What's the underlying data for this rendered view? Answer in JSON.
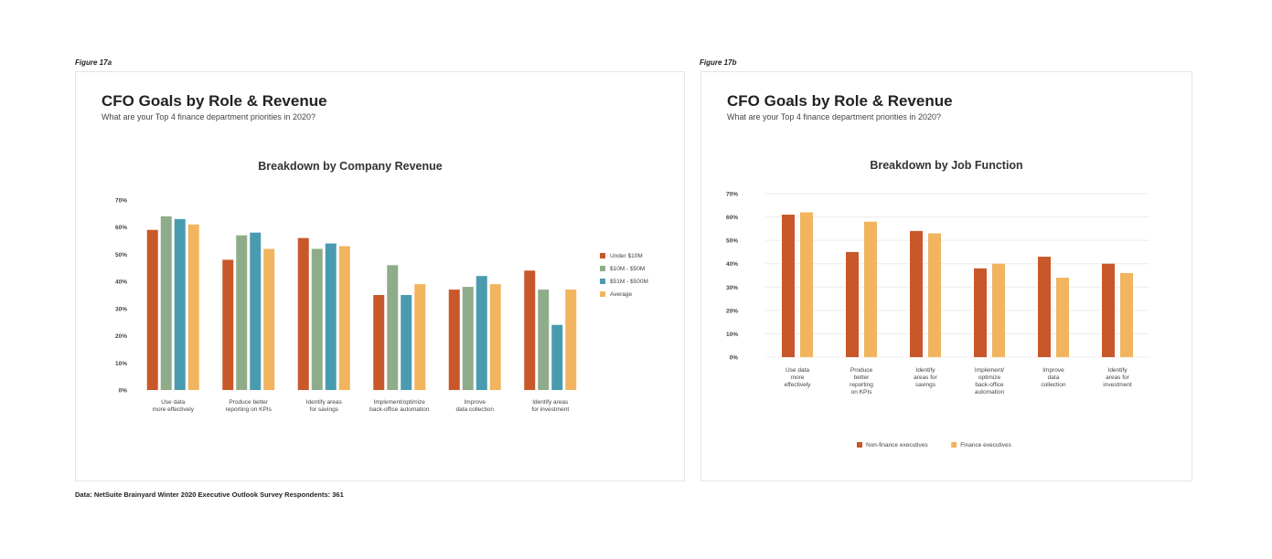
{
  "source_note": "Data: NetSuite Brainyard Winter 2020 Executive Outlook Survey   Respondents: 361",
  "panels": [
    {
      "figure_label": "Figure 17a",
      "title": "CFO Goals by Role & Revenue",
      "subtitle": "What are your Top 4 finance department priorities in 2020?"
    },
    {
      "figure_label": "Figure 17b",
      "title": "CFO Goals by Role & Revenue",
      "subtitle": "What are your Top 4 finance department priorities in 2020?"
    }
  ],
  "chart_data": [
    {
      "type": "bar",
      "title": "Breakdown by Company Revenue",
      "categories": [
        [
          "Use data",
          "more effectively"
        ],
        [
          "Produce better",
          "reporting on KPIs"
        ],
        [
          "Identify areas",
          "for savings"
        ],
        [
          "Implement/optimize",
          "back-office automation"
        ],
        [
          "Improve",
          "data collection"
        ],
        [
          "Identify areas",
          "for investment"
        ]
      ],
      "series": [
        {
          "name": "Under $10M",
          "color": "#c8582a",
          "values": [
            59,
            48,
            56,
            35,
            37,
            44
          ]
        },
        {
          "name": "$10M - $50M",
          "color": "#8fac8a",
          "values": [
            64,
            57,
            52,
            46,
            38,
            37
          ]
        },
        {
          "name": "$51M - $500M",
          "color": "#4a9bb0",
          "values": [
            63,
            58,
            54,
            35,
            42,
            24
          ]
        },
        {
          "name": "Average",
          "color": "#f2b45e",
          "values": [
            61,
            52,
            53,
            39,
            39,
            37
          ]
        }
      ],
      "ylim": [
        0,
        70
      ],
      "yticks": [
        "0%",
        "10%",
        "20%",
        "30%",
        "40%",
        "50%",
        "60%",
        "70%"
      ],
      "legend_position": "right",
      "grid": false
    },
    {
      "type": "bar",
      "title": "Breakdown by Job Function",
      "categories": [
        [
          "Use data",
          "more",
          "effectively"
        ],
        [
          "Produce",
          "better",
          "reporting",
          "on KPIs"
        ],
        [
          "Identify",
          "areas for",
          "savings"
        ],
        [
          "Implement/",
          "optimize",
          "back-office",
          "automation"
        ],
        [
          "Improve",
          "data",
          "collection"
        ],
        [
          "Identify",
          "areas for",
          "investment"
        ]
      ],
      "series": [
        {
          "name": "Non-finance executives",
          "color": "#c8582a",
          "values": [
            61,
            45,
            54,
            38,
            43,
            40
          ]
        },
        {
          "name": "Finance executives",
          "color": "#f2b45e",
          "values": [
            62,
            58,
            53,
            40,
            34,
            36
          ]
        }
      ],
      "ylim": [
        0,
        70
      ],
      "yticks": [
        "0%",
        "10%",
        "20%",
        "30%",
        "40%",
        "50%",
        "60%",
        "70%"
      ],
      "legend_position": "bottom",
      "grid": true
    }
  ]
}
